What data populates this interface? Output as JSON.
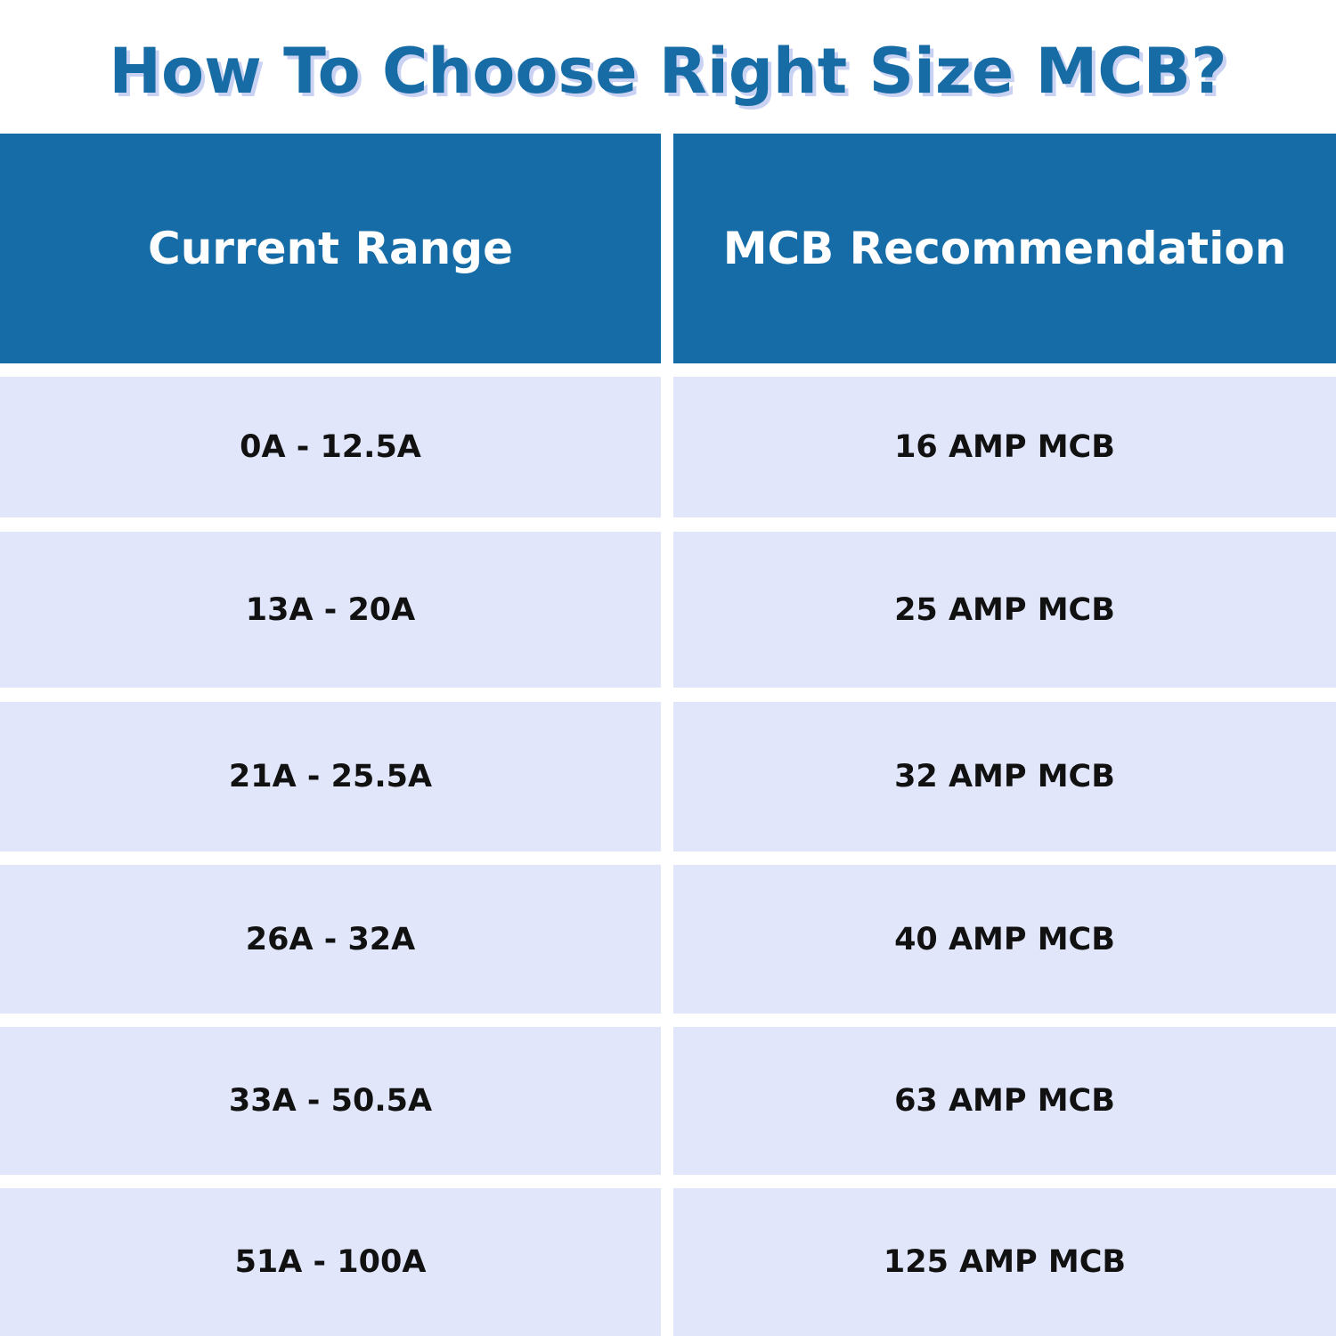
{
  "title": "How To Choose Right Size MCB?",
  "table": {
    "headers": [
      "Current Range",
      "MCB Recommendation"
    ],
    "rows": [
      [
        "0A - 12.5A",
        "16 AMP MCB"
      ],
      [
        "13A - 20A",
        "25 AMP MCB"
      ],
      [
        "21A - 25.5A",
        "32 AMP MCB"
      ],
      [
        "26A - 32A",
        "40 AMP MCB"
      ],
      [
        "33A - 50.5A",
        "63 AMP MCB"
      ],
      [
        "51A - 100A",
        "125 AMP MCB"
      ]
    ]
  },
  "colors": {
    "title": "#186ca5",
    "title_shadow": "#c9d2f3",
    "header_bg": "#166ca6",
    "row_bg": "#e1e6fb",
    "row_text": "#111111"
  }
}
